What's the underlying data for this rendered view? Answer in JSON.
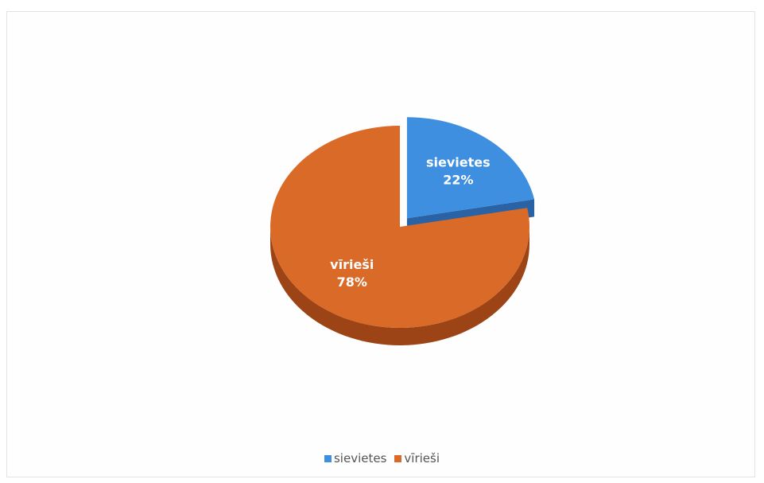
{
  "chart_data": {
    "type": "pie",
    "style": "3d-exploded",
    "series": [
      {
        "name": "sievietes",
        "value": 22,
        "label": "22%",
        "color": "#3f8fe0",
        "side_color": "#2a62a6"
      },
      {
        "name": "vīrieši",
        "value": 78,
        "label": "78%",
        "color": "#d96a28",
        "side_color": "#9c4415"
      }
    ],
    "exploded": "sievietes",
    "legend_position": "bottom"
  }
}
